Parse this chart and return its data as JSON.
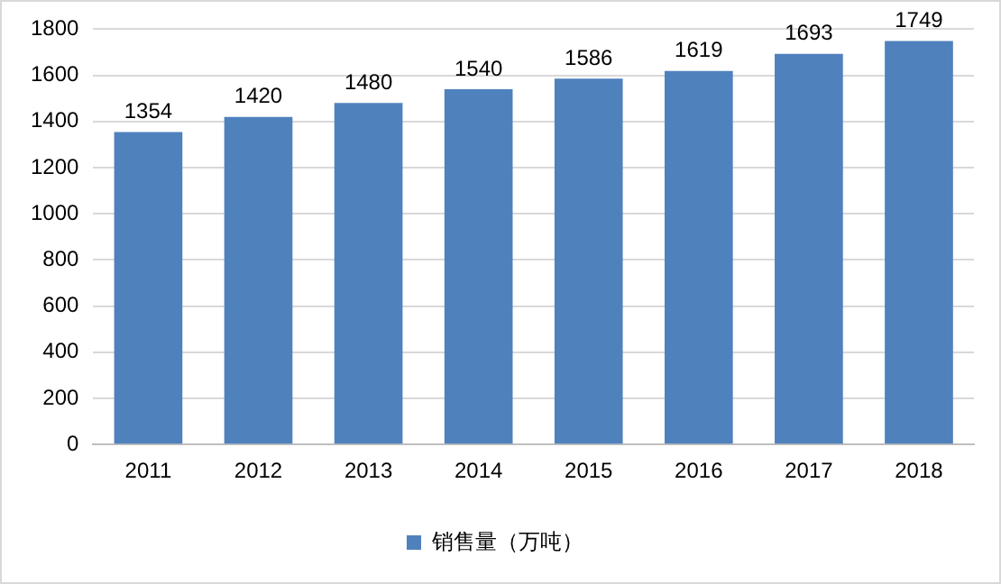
{
  "chart_data": {
    "type": "bar",
    "categories": [
      "2011",
      "2012",
      "2013",
      "2014",
      "2015",
      "2016",
      "2017",
      "2018"
    ],
    "series": [
      {
        "name": "销售量（万吨）",
        "color": "#4f81bd",
        "values": [
          1354,
          1420,
          1480,
          1540,
          1586,
          1619,
          1693,
          1749
        ]
      }
    ],
    "ylim": [
      0,
      1800
    ],
    "yticks": [
      0,
      200,
      400,
      600,
      800,
      1000,
      1200,
      1400,
      1600,
      1800
    ],
    "grid": "y",
    "legend": "bottom",
    "data_labels": true
  }
}
